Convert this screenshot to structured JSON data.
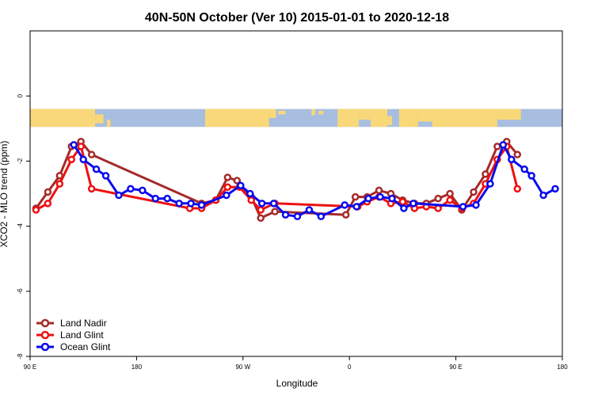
{
  "chart_data": {
    "type": "line",
    "title": "40N-50N October (Ver 10)   2015-01-01 to 2020-12-18",
    "xlabel": "Longitude",
    "ylabel": "XCO2 - MLO trend (ppm)",
    "xlim": [
      90,
      540
    ],
    "ylim": [
      -8,
      2
    ],
    "x_ticks": [
      {
        "value": 90,
        "label": "90 E"
      },
      {
        "value": 180,
        "label": "180"
      },
      {
        "value": 270,
        "label": "90 W"
      },
      {
        "value": 360,
        "label": "0"
      },
      {
        "value": 450,
        "label": "90 E"
      },
      {
        "value": 540,
        "label": "180"
      }
    ],
    "y_ticks": [
      {
        "value": 0,
        "label": "0"
      },
      {
        "value": -2,
        "label": "-2"
      },
      {
        "value": -4,
        "label": "-4"
      },
      {
        "value": -6,
        "label": "-6"
      },
      {
        "value": -8,
        "label": "-8"
      }
    ],
    "legend_position": "bottom-left",
    "map_strip": {
      "y_top": -0.4,
      "y_bottom": -0.95,
      "land_color": "#F8D878",
      "ocean_color": "#A8BEE0"
    },
    "series": [
      {
        "name": "Land Nadir",
        "color": "#A52A2A",
        "x": [
          95,
          105,
          115,
          125,
          133,
          142,
          235,
          247,
          257,
          265,
          277,
          285,
          297,
          357,
          365,
          375,
          385,
          395,
          405,
          415,
          425,
          435,
          445,
          455,
          465,
          475,
          485,
          493,
          502
        ],
        "y": [
          -3.45,
          -2.95,
          -2.45,
          -1.55,
          -1.4,
          -1.8,
          -3.3,
          -3.2,
          -2.5,
          -2.6,
          -3.1,
          -3.75,
          -3.55,
          -3.65,
          -3.1,
          -3.1,
          -2.9,
          -3.0,
          -3.2,
          -3.3,
          -3.3,
          -3.15,
          -3.0,
          -3.5,
          -2.95,
          -2.4,
          -1.55,
          -1.4,
          -1.8
        ]
      },
      {
        "name": "Land Glint",
        "color": "#EE1111",
        "x": [
          95,
          105,
          115,
          125,
          133,
          142,
          225,
          235,
          247,
          257,
          267,
          277,
          285,
          297,
          367,
          375,
          385,
          395,
          405,
          415,
          425,
          435,
          445,
          455,
          465,
          475,
          485,
          493,
          502
        ],
        "y": [
          -3.5,
          -3.3,
          -2.7,
          -1.95,
          -1.55,
          -2.85,
          -3.45,
          -3.45,
          -3.2,
          -2.8,
          -2.8,
          -3.2,
          -3.5,
          -3.3,
          -3.4,
          -3.25,
          -3.1,
          -3.3,
          -3.25,
          -3.45,
          -3.4,
          -3.45,
          -3.2,
          -3.45,
          -3.3,
          -2.7,
          -1.95,
          -1.55,
          -2.85
        ]
      },
      {
        "name": "Ocean Glint",
        "color": "#0A0AEE",
        "x": [
          127,
          135,
          146,
          154,
          165,
          175,
          185,
          196,
          206,
          216,
          226,
          235,
          256,
          268,
          276,
          286,
          296,
          306,
          316,
          326,
          336,
          356,
          366,
          376,
          386,
          396,
          406,
          414,
          456,
          467,
          479,
          490,
          497,
          508,
          514,
          524,
          534
        ],
        "y": [
          -1.5,
          -1.95,
          -2.25,
          -2.45,
          -3.05,
          -2.85,
          -2.9,
          -3.15,
          -3.15,
          -3.3,
          -3.3,
          -3.35,
          -3.05,
          -2.75,
          -3.0,
          -3.3,
          -3.3,
          -3.65,
          -3.7,
          -3.5,
          -3.7,
          -3.35,
          -3.4,
          -3.15,
          -3.1,
          -3.15,
          -3.45,
          -3.3,
          -3.4,
          -3.35,
          -2.7,
          -1.5,
          -1.95,
          -2.25,
          -2.45,
          -3.05,
          -2.85
        ]
      }
    ]
  }
}
